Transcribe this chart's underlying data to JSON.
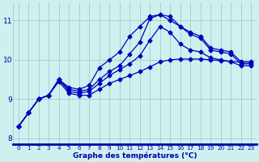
{
  "title": "",
  "xlabel": "Graphe des températures (°C)",
  "ylabel": "",
  "bg_color": "#d0f0f0",
  "line_color": "#0000bb",
  "grid_color": "#aacfcf",
  "axis_bg_color": "#1a1aaa",
  "xlim": [
    -0.5,
    23.5
  ],
  "ylim": [
    7.85,
    11.45
  ],
  "xticks": [
    0,
    1,
    2,
    3,
    4,
    5,
    6,
    7,
    8,
    9,
    10,
    11,
    12,
    13,
    14,
    15,
    16,
    17,
    18,
    19,
    20,
    21,
    22,
    23
  ],
  "yticks": [
    8,
    9,
    10,
    11
  ],
  "series": [
    [
      8.3,
      8.65,
      9.0,
      9.1,
      9.5,
      9.3,
      9.25,
      9.35,
      9.8,
      10.0,
      10.2,
      10.6,
      10.85,
      11.1,
      11.15,
      11.1,
      10.85,
      10.7,
      10.6,
      10.3,
      10.25,
      10.2,
      9.95,
      9.95
    ],
    [
      8.3,
      8.65,
      9.0,
      9.1,
      9.5,
      9.25,
      9.2,
      9.25,
      9.5,
      9.7,
      9.85,
      10.15,
      10.45,
      11.05,
      11.15,
      11.0,
      10.85,
      10.65,
      10.55,
      10.25,
      10.2,
      10.15,
      9.9,
      9.9
    ],
    [
      8.3,
      8.65,
      9.0,
      9.1,
      9.5,
      9.2,
      9.15,
      9.2,
      9.4,
      9.6,
      9.75,
      9.9,
      10.1,
      10.5,
      10.85,
      10.7,
      10.4,
      10.25,
      10.2,
      10.05,
      10.0,
      9.95,
      9.85,
      9.85
    ],
    [
      8.3,
      8.65,
      9.0,
      9.1,
      9.45,
      9.15,
      9.1,
      9.1,
      9.25,
      9.4,
      9.5,
      9.6,
      9.7,
      9.82,
      9.95,
      10.0,
      10.02,
      10.02,
      10.02,
      10.0,
      9.98,
      9.96,
      9.94,
      9.94
    ]
  ],
  "marker": "D",
  "marker_size": 2.5,
  "linewidth": 0.9
}
